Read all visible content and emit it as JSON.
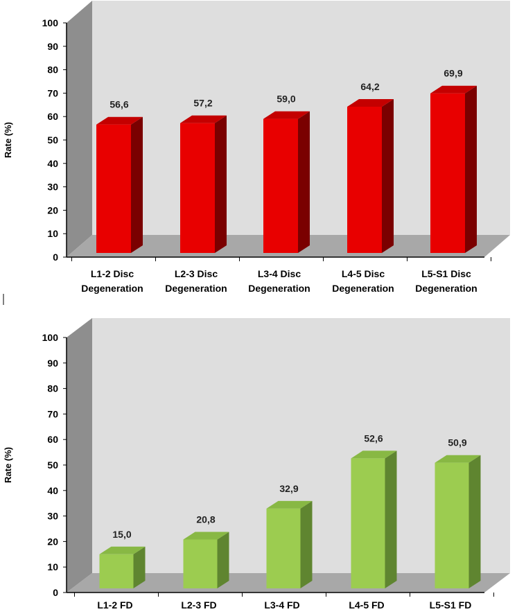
{
  "chart_data": [
    {
      "type": "bar",
      "title": "",
      "xlabel": "",
      "ylabel": "Rate (%)",
      "ylim": [
        0,
        100
      ],
      "yticks": [
        "0",
        "10",
        "20",
        "30",
        "40",
        "50",
        "60",
        "70",
        "80",
        "90",
        "100"
      ],
      "categories": [
        [
          "L1-2 Disc",
          "Degeneration"
        ],
        [
          "L2-3 Disc",
          "Degeneration"
        ],
        [
          "L3-4 Disc",
          "Degeneration"
        ],
        [
          "L4-5 Disc",
          "Degeneration"
        ],
        [
          "L5-S1 Disc",
          "Degeneration"
        ]
      ],
      "values": [
        56.6,
        57.2,
        59.0,
        64.2,
        69.9
      ],
      "labels": [
        "56,6",
        "57,2",
        "59,0",
        "64,2",
        "69,9"
      ],
      "colors": {
        "front": "#e80000",
        "top": "#c40000",
        "side": "#7a0000"
      }
    },
    {
      "type": "bar",
      "title": "",
      "xlabel": "",
      "ylabel": "Rate (%)",
      "ylim": [
        0,
        100
      ],
      "yticks": [
        "0",
        "10",
        "20",
        "30",
        "40",
        "50",
        "60",
        "70",
        "80",
        "90",
        "100"
      ],
      "categories": [
        [
          "L1-2 FD"
        ],
        [
          "L2-3 FD"
        ],
        [
          "L3-4 FD"
        ],
        [
          "L4-5 FD"
        ],
        [
          "L5-S1 FD"
        ]
      ],
      "values": [
        15.0,
        20.8,
        32.9,
        52.6,
        50.9
      ],
      "labels": [
        "15,0",
        "20,8",
        "32,9",
        "52,6",
        "50,9"
      ],
      "colors": {
        "front": "#9ccc50",
        "top": "#88b844",
        "side": "#5f8530"
      }
    }
  ]
}
